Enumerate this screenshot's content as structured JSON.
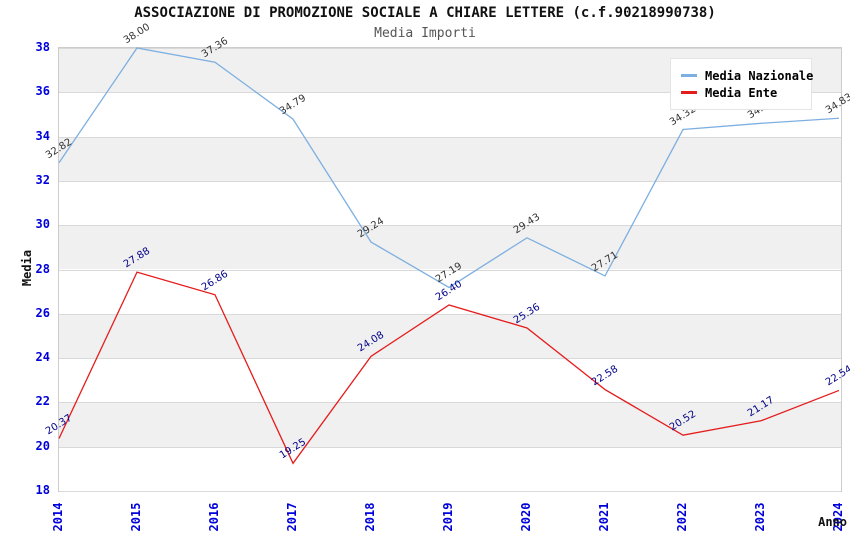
{
  "chart_data": {
    "type": "line",
    "title": "ASSOCIAZIONE DI PROMOZIONE SOCIALE A CHIARE LETTERE (c.f.90218990738)",
    "subtitle": "Media Importi",
    "xlabel": "Anno",
    "ylabel": "Media",
    "x": [
      2014,
      2015,
      2016,
      2017,
      2018,
      2019,
      2020,
      2021,
      2022,
      2023,
      2024
    ],
    "series": [
      {
        "name": "Media Nazionale",
        "color": "#7dafe0",
        "label_color": "#333333",
        "values": [
          32.82,
          38.0,
          37.36,
          34.79,
          29.24,
          27.19,
          29.43,
          27.71,
          34.32,
          34.6,
          34.83
        ]
      },
      {
        "name": "Media Ente",
        "color": "#e51c1c",
        "label_color": "#000088",
        "values": [
          20.37,
          27.88,
          26.86,
          19.25,
          24.08,
          26.4,
          25.36,
          22.58,
          20.52,
          21.17,
          22.54
        ]
      }
    ],
    "ylim": [
      18,
      38
    ],
    "ytick_step": 2,
    "grid": "horizontal-bands",
    "legend_position": "top-right",
    "band_color": "#f0f0f0",
    "gridline_color": "#d9d9d9",
    "tick_label_color": "#0000dd"
  }
}
